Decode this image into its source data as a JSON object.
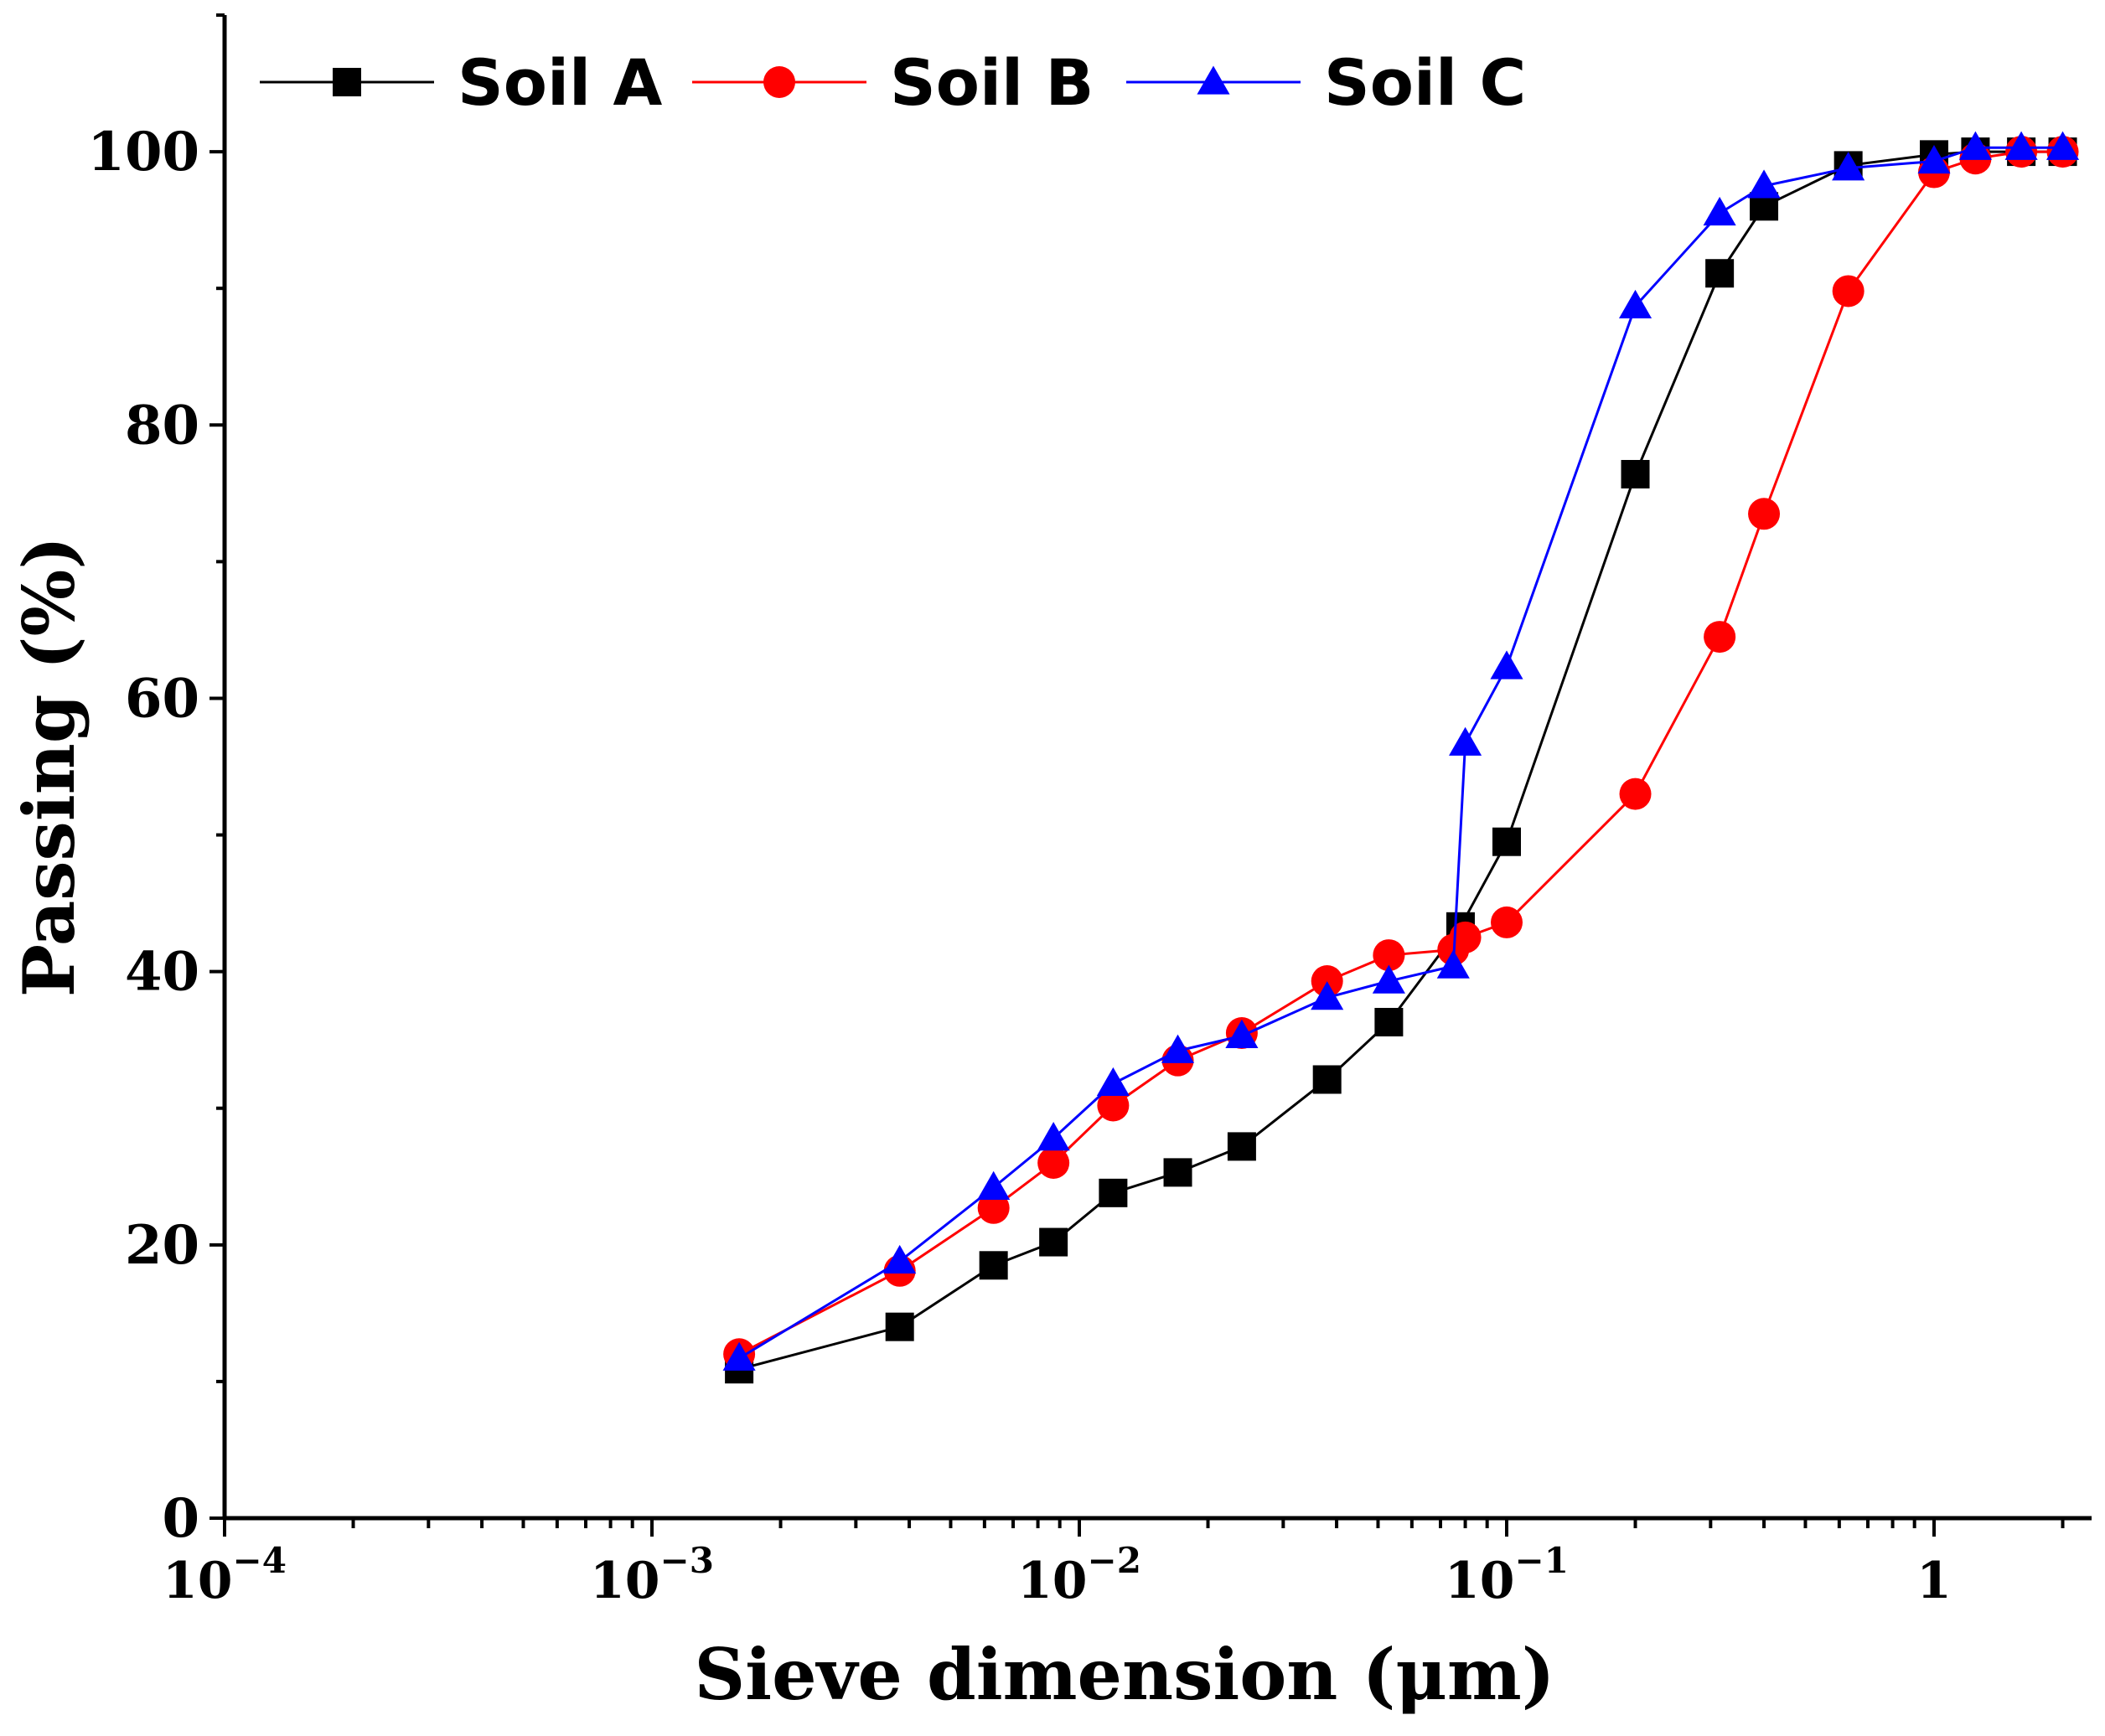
{
  "chart_data": {
    "type": "line",
    "xscale": "log",
    "xlabel": "Sieve dimension (μm)",
    "ylabel": "Passing (%)",
    "xlim": [
      0.0001,
      2.2
    ],
    "ylim": [
      0,
      110
    ],
    "y_ticks": [
      0,
      20,
      40,
      60,
      80,
      100
    ],
    "x_ticks": [
      {
        "value": 0.0001,
        "label": "10",
        "exp": "−4"
      },
      {
        "value": 0.001,
        "label": "10",
        "exp": "−3"
      },
      {
        "value": 0.01,
        "label": "10",
        "exp": "−2"
      },
      {
        "value": 0.1,
        "label": "10",
        "exp": "−1"
      },
      {
        "value": 1,
        "label": "1",
        "exp": ""
      }
    ],
    "grid": false,
    "legend_position": "top-left",
    "series": [
      {
        "name": "Soil A",
        "color": "#000000",
        "marker": "square",
        "x": [
          0.0016,
          0.0038,
          0.0063,
          0.0087,
          0.012,
          0.017,
          0.024,
          0.038,
          0.053,
          0.078,
          0.1,
          0.2,
          0.315,
          0.4,
          0.63,
          1.0,
          1.25,
          1.6,
          2.0
        ],
        "y": [
          10.9,
          14.0,
          18.5,
          20.2,
          23.8,
          25.3,
          27.2,
          32.1,
          36.3,
          43.3,
          49.5,
          76.4,
          91.1,
          96.0,
          99.0,
          99.8,
          100.0,
          100.0,
          100.0
        ]
      },
      {
        "name": "Soil B",
        "color": "#ff0000",
        "marker": "circle",
        "x": [
          0.0016,
          0.0038,
          0.0063,
          0.0087,
          0.012,
          0.017,
          0.024,
          0.038,
          0.053,
          0.075,
          0.08,
          0.1,
          0.2,
          0.315,
          0.4,
          0.63,
          1.0,
          1.25,
          1.6,
          2.0
        ],
        "y": [
          12.0,
          18.1,
          22.7,
          26.0,
          30.2,
          33.5,
          35.5,
          39.3,
          41.2,
          41.6,
          42.5,
          43.6,
          53.0,
          64.5,
          73.5,
          89.8,
          98.5,
          99.5,
          100.0,
          100.0
        ]
      },
      {
        "name": "Soil C",
        "color": "#0000ff",
        "marker": "triangle",
        "x": [
          0.0016,
          0.0038,
          0.0063,
          0.0087,
          0.012,
          0.017,
          0.024,
          0.038,
          0.053,
          0.075,
          0.08,
          0.1,
          0.2,
          0.315,
          0.4,
          0.63,
          1.0,
          1.25,
          1.6,
          2.0
        ],
        "y": [
          11.7,
          18.8,
          24.2,
          27.8,
          31.8,
          34.2,
          35.3,
          38.1,
          39.3,
          40.4,
          56.7,
          62.3,
          88.7,
          95.5,
          97.5,
          98.8,
          99.3,
          100.3,
          100.3,
          100.3
        ]
      }
    ]
  }
}
